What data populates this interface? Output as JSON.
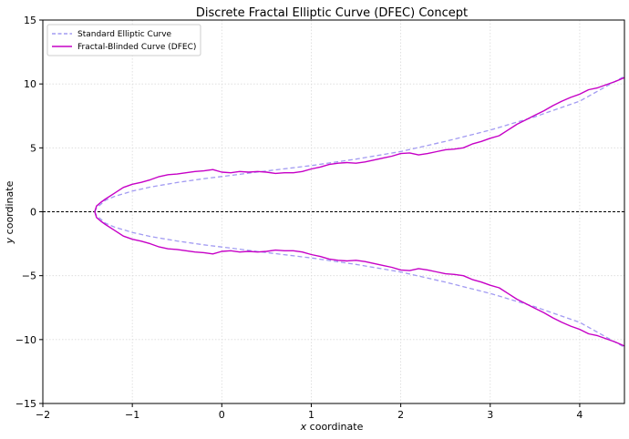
{
  "chart_data": {
    "type": "line",
    "title": "Discrete Fractal Elliptic Curve (DFEC) Concept",
    "xlabel": "x coordinate",
    "ylabel": "y coordinate",
    "xlim": [
      -2,
      4.5
    ],
    "ylim": [
      -15,
      15
    ],
    "xticks": [
      "−2",
      "−1",
      "0",
      "1",
      "2",
      "3",
      "4"
    ],
    "yticks": [
      "15",
      "10",
      "5",
      "0",
      "−5",
      "−10",
      "−15"
    ],
    "grid": true,
    "legend_position": "top-left",
    "reference_line": {
      "y": 0,
      "style": "dashed",
      "color": "#000000"
    },
    "series": [
      {
        "name": "Standard Elliptic Curve",
        "color": "#a29bf2",
        "style": "dashed",
        "x": [
          -1.42,
          -1.4,
          -1.3,
          -1.2,
          -1.0,
          -0.8,
          -0.5,
          -0.2,
          0.0,
          0.2,
          0.5,
          1.0,
          1.5,
          2.0,
          2.5,
          3.0,
          3.5,
          4.0,
          4.5
        ],
        "y": [
          0.0,
          0.3,
          0.9,
          1.2,
          1.62,
          1.93,
          2.29,
          2.59,
          2.76,
          2.93,
          3.19,
          3.61,
          4.12,
          4.71,
          5.51,
          6.39,
          7.43,
          8.65,
          10.6
        ]
      },
      {
        "name": "Fractal-Blinded Curve (DFEC)",
        "color": "#c600c6",
        "style": "solid",
        "x": [
          -1.42,
          -1.4,
          -1.35,
          -1.3,
          -1.2,
          -1.1,
          -1.0,
          -0.9,
          -0.8,
          -0.7,
          -0.6,
          -0.5,
          -0.4,
          -0.3,
          -0.2,
          -0.1,
          0.0,
          0.1,
          0.2,
          0.3,
          0.4,
          0.5,
          0.6,
          0.7,
          0.8,
          0.9,
          1.0,
          1.1,
          1.2,
          1.3,
          1.4,
          1.5,
          1.6,
          1.7,
          1.8,
          1.9,
          2.0,
          2.1,
          2.2,
          2.3,
          2.4,
          2.5,
          2.6,
          2.7,
          2.8,
          2.9,
          3.0,
          3.1,
          3.2,
          3.3,
          3.4,
          3.5,
          3.6,
          3.7,
          3.8,
          3.9,
          4.0,
          4.1,
          4.2,
          4.3,
          4.4,
          4.5
        ],
        "y": [
          0.0,
          0.45,
          0.75,
          1.0,
          1.45,
          1.9,
          2.15,
          2.3,
          2.5,
          2.75,
          2.9,
          2.95,
          3.05,
          3.15,
          3.2,
          3.3,
          3.1,
          3.05,
          3.15,
          3.1,
          3.15,
          3.1,
          3.0,
          3.05,
          3.05,
          3.15,
          3.35,
          3.5,
          3.7,
          3.8,
          3.85,
          3.8,
          3.9,
          4.05,
          4.2,
          4.35,
          4.55,
          4.6,
          4.45,
          4.55,
          4.7,
          4.85,
          4.9,
          5.0,
          5.3,
          5.5,
          5.75,
          5.95,
          6.4,
          6.85,
          7.2,
          7.55,
          7.9,
          8.3,
          8.65,
          8.95,
          9.2,
          9.55,
          9.7,
          9.95,
          10.2,
          10.5
        ]
      }
    ]
  }
}
